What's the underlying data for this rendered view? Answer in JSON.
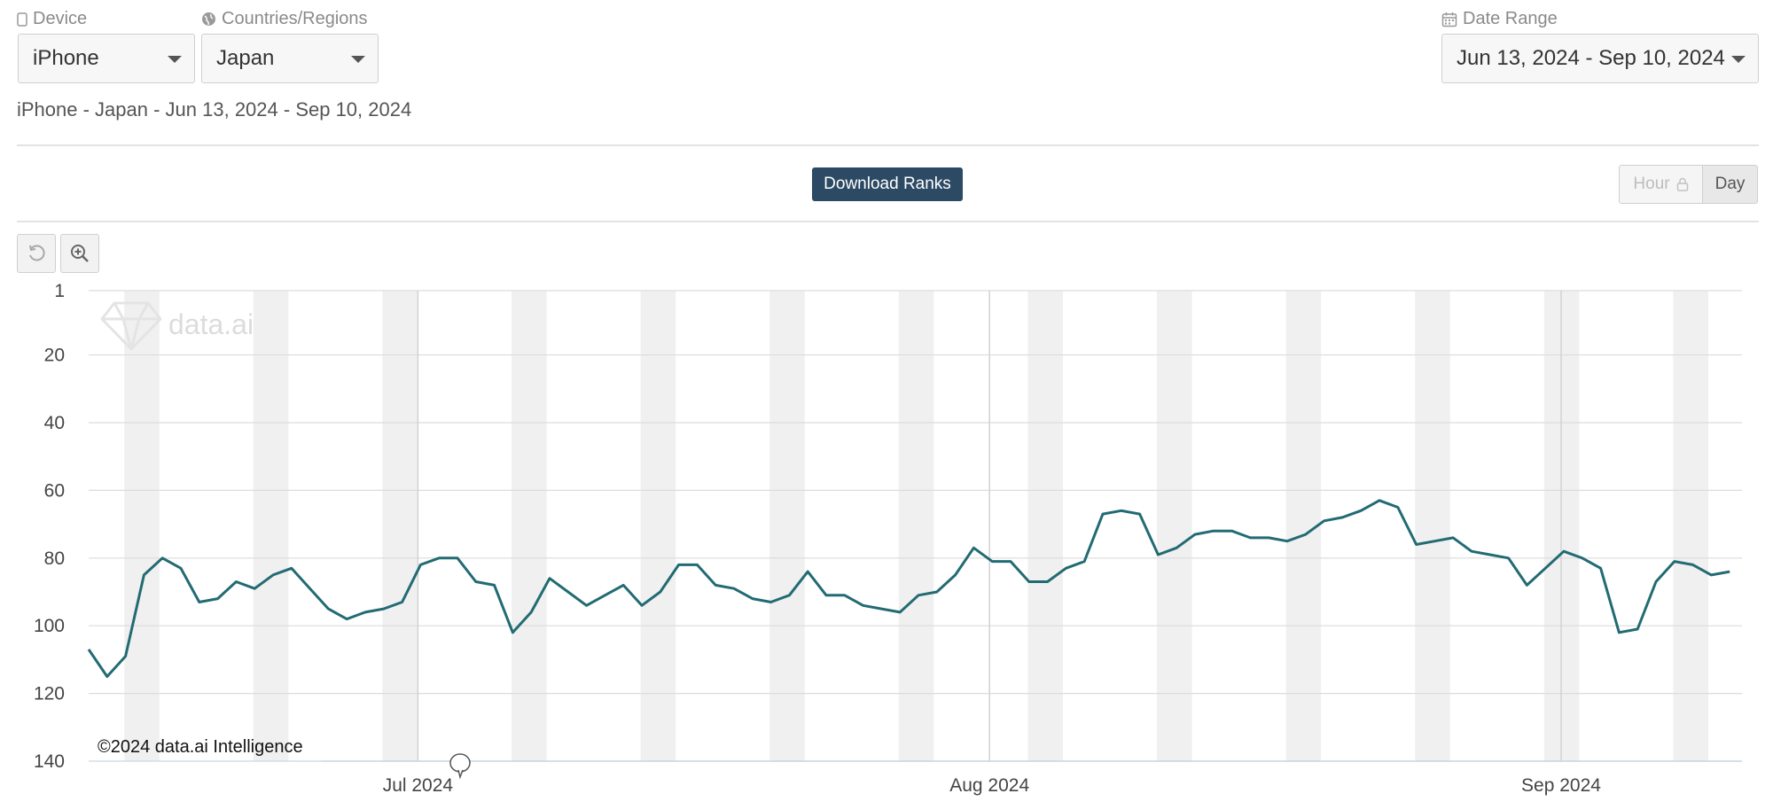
{
  "filters": {
    "device_label": "Device",
    "device_value": "iPhone",
    "region_label": "Countries/Regions",
    "region_value": "Japan",
    "date_label": "Date Range",
    "date_value": "Jun 13, 2024 - Sep 10, 2024"
  },
  "subtitle": "iPhone - Japan - Jun 13, 2024 - Sep 10, 2024",
  "toolbar": {
    "download_label": "Download Ranks",
    "hour_label": "Hour",
    "day_label": "Day"
  },
  "watermark": "data.ai",
  "copyright": "©2024 data.ai Intelligence",
  "colors": {
    "line": "#226b73",
    "button": "#2c4a63",
    "weekend_band": "#f0f0f0"
  },
  "chart_data": {
    "type": "line",
    "x_start": "Jun 13, 2024",
    "x_end": "Sep 10, 2024",
    "ylim": [
      1,
      140
    ],
    "y_reversed": true,
    "y_ticks": [
      1,
      20,
      40,
      60,
      80,
      100,
      120,
      140
    ],
    "x_tick_labels": [
      "Jul 2024",
      "Aug 2024",
      "Sep 2024"
    ],
    "grid": true,
    "weekend_bands": true,
    "series": [
      {
        "values": [
          107,
          115,
          109,
          85,
          80,
          83,
          93,
          92,
          87,
          89,
          85,
          83,
          89,
          95,
          98,
          96,
          95,
          93,
          82,
          80,
          80,
          87,
          88,
          102,
          96,
          86,
          90,
          94,
          91,
          88,
          94,
          90,
          82,
          82,
          88,
          89,
          92,
          93,
          91,
          84,
          91,
          91,
          94,
          95,
          96,
          91,
          90,
          85,
          77,
          81,
          81,
          87,
          87,
          83,
          81,
          67,
          66,
          67,
          79,
          77,
          73,
          72,
          72,
          74,
          74,
          75,
          73,
          69,
          68,
          66,
          63,
          65,
          76,
          75,
          74,
          78,
          79,
          80,
          88,
          83,
          78,
          80,
          83,
          102,
          101,
          87,
          81,
          82,
          85,
          84
        ]
      }
    ]
  }
}
